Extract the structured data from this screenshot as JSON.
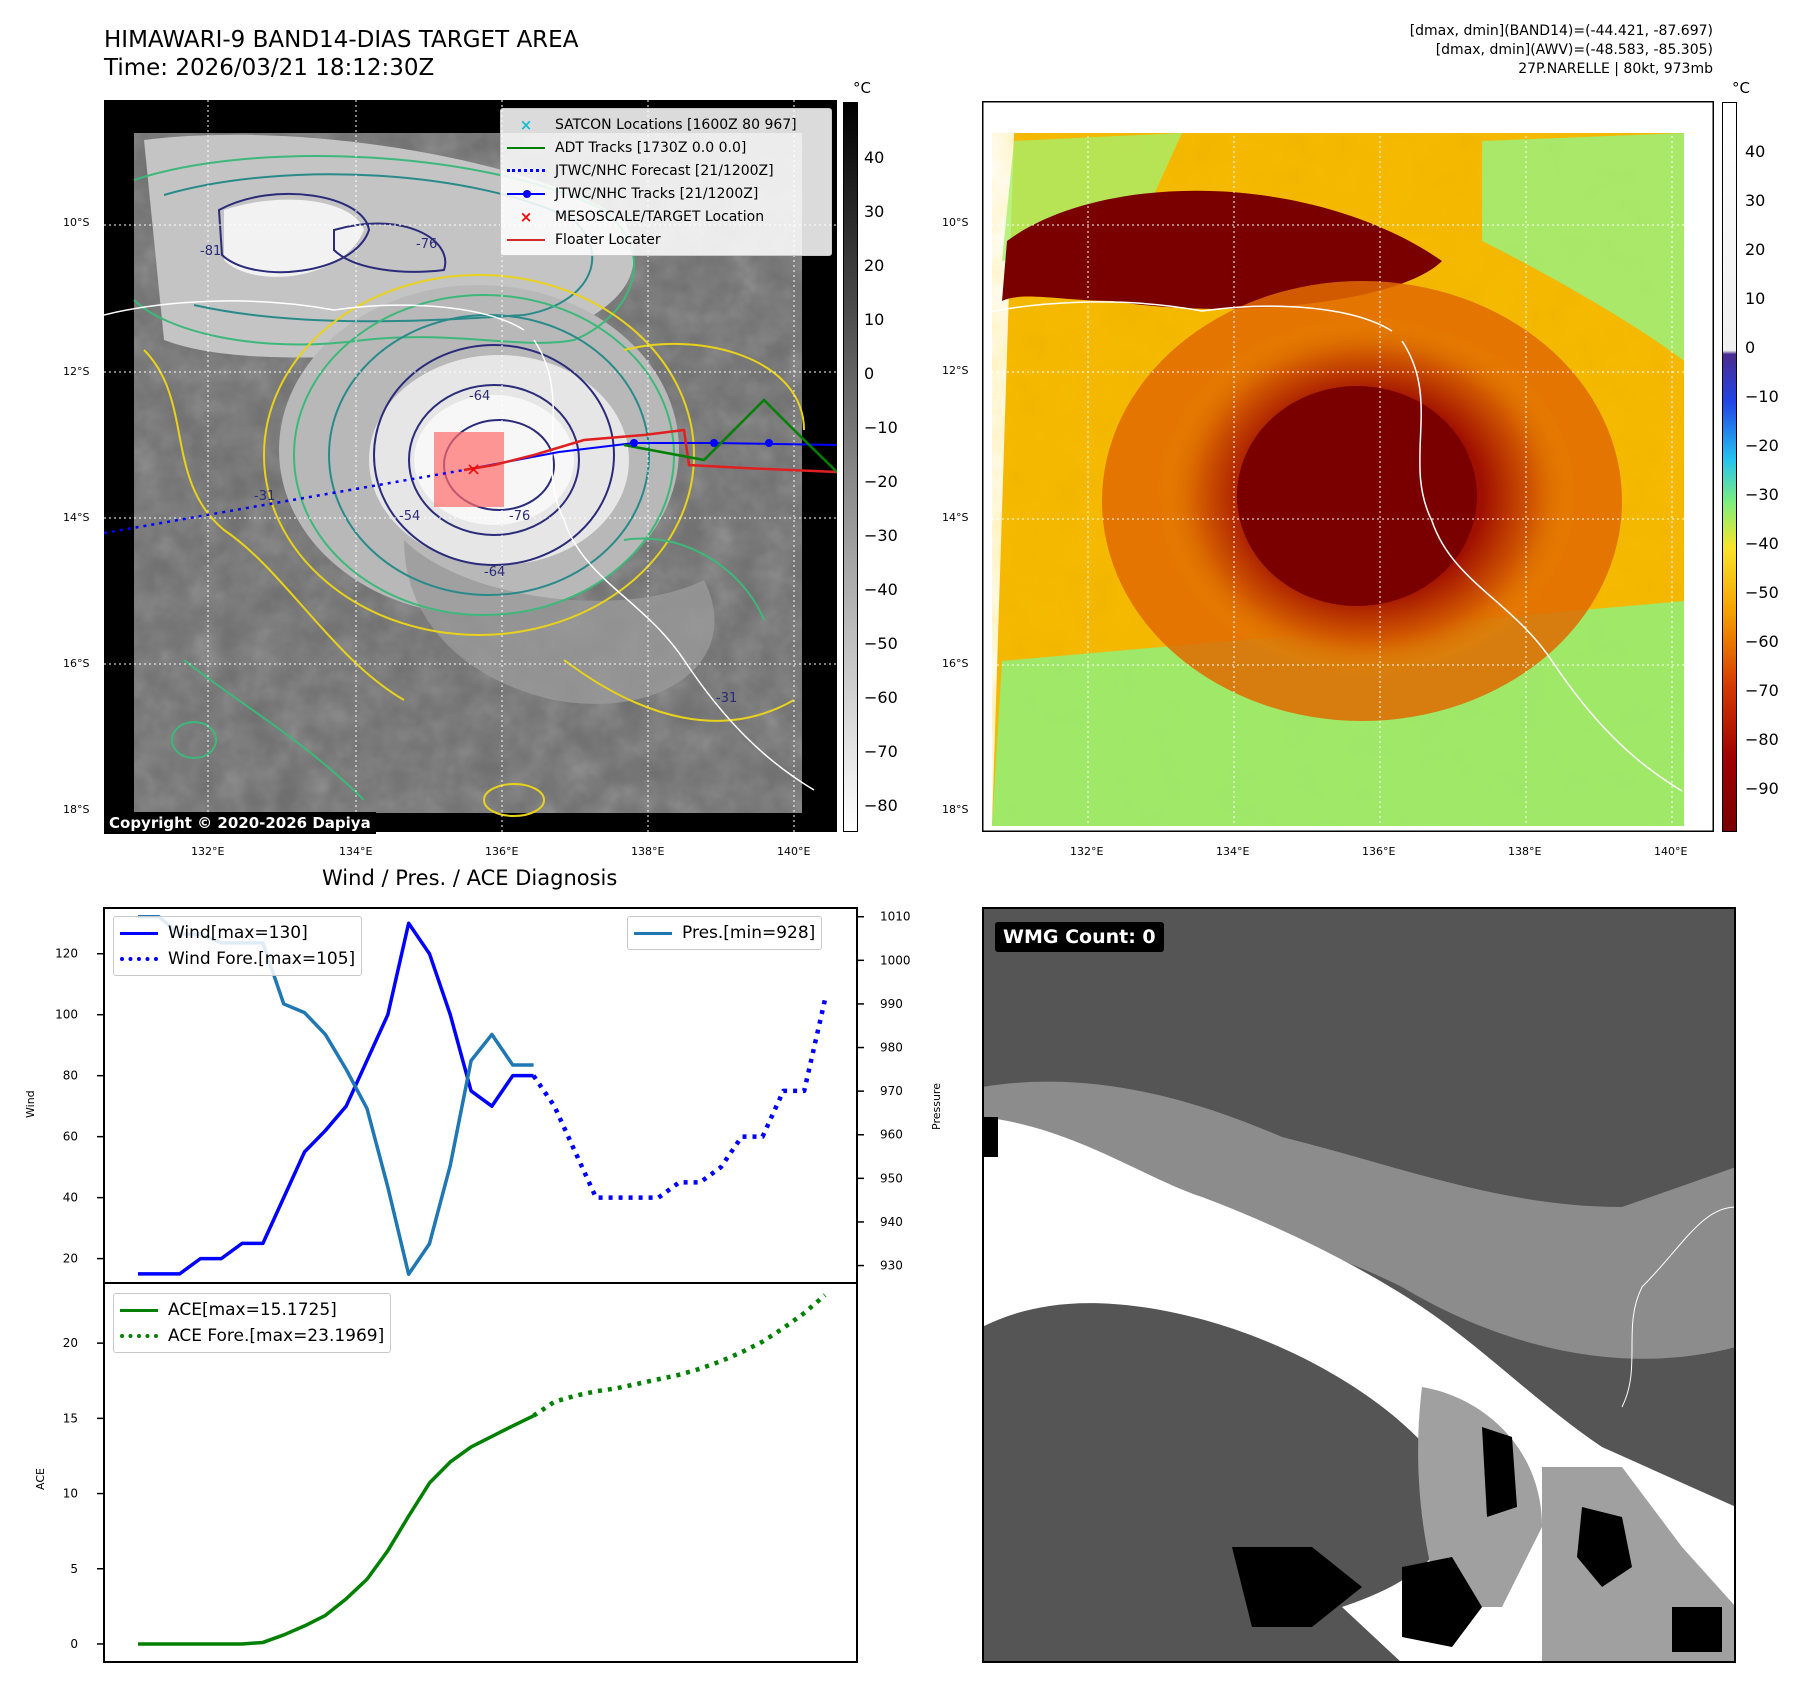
{
  "header": {
    "title_line1": "HIMAWARI-9 BAND14-DIAS TARGET AREA",
    "title_line2": "Time: 2026/03/21 18:12:30Z",
    "info_line1": "[dmax, dmin](BAND14)=(-44.421, -87.697)",
    "info_line2": "[dmax, dmin](AWV)=(-48.583, -85.305)",
    "info_line3": "27P.NARELLE | 80kt, 973mb"
  },
  "map": {
    "lat_labels": [
      "10°S",
      "12°S",
      "14°S",
      "16°S",
      "18°S"
    ],
    "lon_labels": [
      "132°E",
      "134°E",
      "136°E",
      "138°E",
      "140°E"
    ],
    "copyright": "Copyright © 2020-2026 Dapiya",
    "contour_labels": [
      "-81",
      "-76",
      "-64",
      "-76",
      "-64",
      "-54",
      "-31",
      "-31"
    ],
    "legend": [
      {
        "label": "SATCON Locations [1600Z 80 967]",
        "color": "#17becf",
        "marker": "x"
      },
      {
        "label": "ADT Tracks [1730Z 0.0 0.0]",
        "color": "#008000",
        "marker": "line"
      },
      {
        "label": "JTWC/NHC Forecast [21/1200Z]",
        "color": "#0000ff",
        "marker": "dot"
      },
      {
        "label": "JTWC/NHC Tracks [21/1200Z]",
        "color": "#0000ff",
        "marker": "line-dot"
      },
      {
        "label": "MESOSCALE/TARGET Location",
        "color": "#ff0000",
        "marker": "x"
      },
      {
        "label": "Floater Locater",
        "color": "#d62728",
        "marker": "line"
      }
    ]
  },
  "colorbar_gray": {
    "unit": "°C",
    "ticks": [
      "40",
      "30",
      "20",
      "10",
      "0",
      "−10",
      "−20",
      "−30",
      "−40",
      "−50",
      "−60",
      "−70",
      "−80"
    ]
  },
  "colorbar_color": {
    "unit": "°C",
    "ticks": [
      "40",
      "30",
      "20",
      "10",
      "0",
      "−10",
      "−20",
      "−30",
      "−40",
      "−50",
      "−60",
      "−70",
      "−80",
      "−90"
    ]
  },
  "diag_title": "Wind / Pres. / ACE Diagnosis",
  "wmg": {
    "label": "WMG Count: 0"
  },
  "colors": {
    "wind": "#0000ff",
    "pres": "#1f77b4",
    "ace": "#008000"
  },
  "chart_data": [
    {
      "type": "line",
      "title": "Wind / Pres. / ACE Diagnosis",
      "ylabel": "Wind",
      "y2label": "Pressure",
      "ylim": [
        12,
        135
      ],
      "y2lim": [
        926,
        1012
      ],
      "yticks": [
        20,
        40,
        60,
        80,
        100,
        120
      ],
      "y2ticks": [
        930,
        940,
        950,
        960,
        970,
        980,
        990,
        1000,
        1010
      ],
      "series": [
        {
          "name": "Wind[max=130]",
          "style": "solid",
          "color": "#0000ff",
          "x": [
            0,
            1,
            2,
            3,
            4,
            5,
            6,
            7,
            8,
            9,
            10,
            11,
            12,
            13,
            14,
            15,
            16,
            17,
            18,
            19
          ],
          "values": [
            15,
            15,
            15,
            20,
            20,
            25,
            25,
            40,
            55,
            62,
            70,
            85,
            100,
            130,
            120,
            100,
            75,
            70,
            80,
            80
          ]
        },
        {
          "name": "Wind Fore.[max=105]",
          "style": "dotted",
          "color": "#0000ff",
          "x": [
            19,
            20,
            21,
            22,
            23,
            24,
            25,
            26,
            27,
            28,
            29,
            30,
            31,
            32,
            33
          ],
          "values": [
            80,
            70,
            55,
            40,
            40,
            40,
            40,
            45,
            45,
            50,
            60,
            60,
            75,
            75,
            105
          ]
        },
        {
          "name": "Pres.[min=928]",
          "style": "solid",
          "color": "#1f77b4",
          "axis": "right",
          "x": [
            0,
            1,
            2,
            3,
            4,
            5,
            6,
            7,
            8,
            9,
            10,
            11,
            12,
            13,
            14,
            15,
            16,
            17,
            18,
            19
          ],
          "values": [
            1010,
            1010,
            1006,
            1006,
            1004,
            1004,
            1004,
            990,
            988,
            983,
            975,
            966,
            948,
            928,
            935,
            953,
            977,
            983,
            976,
            976
          ]
        }
      ]
    },
    {
      "type": "line",
      "ylabel": "ACE",
      "ylim": [
        -1.2,
        24
      ],
      "yticks": [
        0,
        5,
        10,
        15,
        20
      ],
      "series": [
        {
          "name": "ACE[max=15.1725]",
          "style": "solid",
          "color": "#008000",
          "x": [
            0,
            1,
            2,
            3,
            4,
            5,
            6,
            7,
            8,
            9,
            10,
            11,
            12,
            13,
            14,
            15,
            16,
            17,
            18,
            19
          ],
          "values": [
            0,
            0,
            0,
            0,
            0,
            0,
            0.1,
            0.6,
            1.2,
            1.9,
            3,
            4.3,
            6.2,
            8.5,
            10.7,
            12.1,
            13.1,
            13.8,
            14.5,
            15.1725
          ]
        },
        {
          "name": "ACE Fore.[max=23.1969]",
          "style": "dotted",
          "color": "#008000",
          "x": [
            19,
            20,
            21,
            22,
            23,
            24,
            25,
            26,
            27,
            28,
            29,
            30,
            31,
            32,
            33
          ],
          "values": [
            15.1725,
            16.1,
            16.5,
            16.8,
            17,
            17.3,
            17.6,
            17.9,
            18.3,
            18.8,
            19.4,
            20.1,
            21,
            22,
            23.1969
          ]
        }
      ]
    }
  ]
}
